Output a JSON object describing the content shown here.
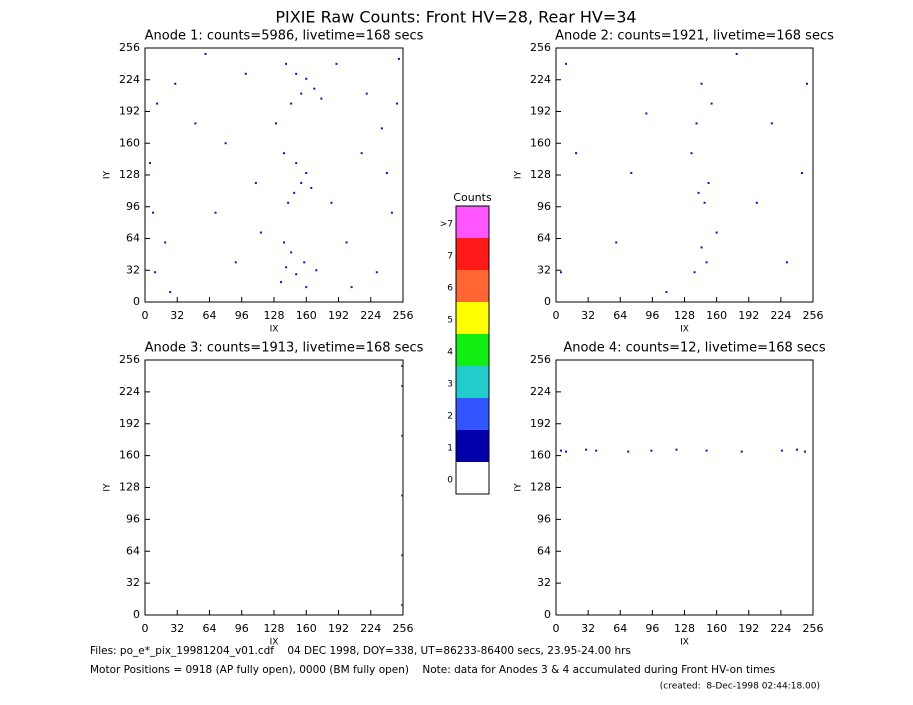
{
  "title": "PIXIE Raw Counts:  Front HV=28, Rear HV=34",
  "chart_data": [
    {
      "type": "scatter",
      "title": "Anode 1: counts=5986, livetime=168 secs",
      "xlabel": "IX",
      "ylabel": "IY",
      "xlim": [
        0,
        256
      ],
      "ylim": [
        0,
        256
      ],
      "xticks": [
        0,
        32,
        64,
        96,
        128,
        160,
        192,
        224,
        256
      ],
      "yticks": [
        0,
        32,
        64,
        96,
        128,
        160,
        192,
        224,
        256
      ],
      "series": [
        {
          "color": "#1010c0",
          "x": [
            135,
            140,
            150,
            158,
            145,
            160,
            170,
            138,
            148,
            155,
            142,
            160,
            150,
            165,
            138,
            130,
            145,
            155,
            168,
            160,
            150,
            175,
            140,
            10,
            20,
            5,
            12,
            30,
            50,
            70,
            90,
            100,
            110,
            200,
            215,
            230,
            245,
            250,
            190,
            185,
            220,
            240,
            8,
            25,
            60,
            80,
            115,
            205,
            235,
            252
          ],
          "y": [
            20,
            35,
            28,
            40,
            50,
            15,
            32,
            60,
            110,
            120,
            100,
            130,
            140,
            115,
            150,
            180,
            200,
            210,
            215,
            225,
            230,
            205,
            240,
            30,
            60,
            140,
            200,
            220,
            180,
            90,
            40,
            230,
            120,
            60,
            150,
            30,
            90,
            200,
            240,
            100,
            210,
            130,
            90,
            10,
            250,
            160,
            70,
            15,
            175,
            245
          ]
        }
      ]
    },
    {
      "type": "scatter",
      "title": "Anode 2: counts=1921, livetime=168 secs",
      "xlabel": "IX",
      "ylabel": "IY",
      "xlim": [
        0,
        256
      ],
      "ylim": [
        0,
        256
      ],
      "xticks": [
        0,
        32,
        64,
        96,
        128,
        160,
        192,
        224,
        256
      ],
      "yticks": [
        0,
        32,
        64,
        96,
        128,
        160,
        192,
        224,
        256
      ],
      "series": [
        {
          "color": "#1010c0",
          "x": [
            138,
            145,
            150,
            142,
            152,
            148,
            140,
            155,
            145,
            135,
            5,
            20,
            10,
            60,
            90,
            200,
            230,
            250,
            245,
            180,
            110,
            75,
            215,
            160
          ],
          "y": [
            30,
            55,
            40,
            110,
            120,
            100,
            180,
            200,
            220,
            150,
            30,
            150,
            240,
            60,
            190,
            100,
            40,
            220,
            130,
            250,
            10,
            130,
            180,
            70
          ]
        }
      ]
    },
    {
      "type": "scatter",
      "title": "Anode 3: counts=1913, livetime=168 secs",
      "xlabel": "IX",
      "ylabel": "IY",
      "xlim": [
        0,
        256
      ],
      "ylim": [
        0,
        256
      ],
      "xticks": [
        0,
        32,
        64,
        96,
        128,
        160,
        192,
        224,
        256
      ],
      "yticks": [
        0,
        32,
        64,
        96,
        128,
        160,
        192,
        224,
        256
      ],
      "series": [
        {
          "color": "#cc3366",
          "x": [
            255,
            255,
            255,
            255,
            255,
            255
          ],
          "y": [
            10,
            60,
            120,
            180,
            230,
            250
          ]
        }
      ]
    },
    {
      "type": "scatter",
      "title": "Anode 4: counts=12, livetime=168 secs",
      "xlabel": "IX",
      "ylabel": "IY",
      "xlim": [
        0,
        256
      ],
      "ylim": [
        0,
        256
      ],
      "xticks": [
        0,
        32,
        64,
        96,
        128,
        160,
        192,
        224,
        256
      ],
      "yticks": [
        0,
        32,
        64,
        96,
        128,
        160,
        192,
        224,
        256
      ],
      "series": [
        {
          "color": "#1010c0",
          "x": [
            5,
            10,
            30,
            40,
            72,
            95,
            120,
            150,
            185,
            225,
            240,
            248
          ],
          "y": [
            165,
            164,
            166,
            165,
            164,
            165,
            166,
            165,
            164,
            165,
            166,
            164
          ]
        }
      ]
    }
  ],
  "colorbar": {
    "title": "Counts",
    "levels": [
      {
        "label": ">7",
        "color": "#ff55ff"
      },
      {
        "label": "7",
        "color": "#ff1a1a"
      },
      {
        "label": "6",
        "color": "#ff6633"
      },
      {
        "label": "5",
        "color": "#ffff00"
      },
      {
        "label": "4",
        "color": "#11ee11"
      },
      {
        "label": "3",
        "color": "#22cccc"
      },
      {
        "label": "2",
        "color": "#3355ff"
      },
      {
        "label": "1",
        "color": "#0000aa"
      },
      {
        "label": "0",
        "color": "#ffffff"
      }
    ]
  },
  "footer": [
    "Files: po_e*_pix_19981204_v01.cdf    04 DEC 1998, DOY=338, UT=86233-86400 secs, 23.95-24.00 hrs",
    "Motor Positions = 0918 (AP fully open), 0000 (BM fully open)    Note: data for Anodes 3 & 4 accumulated during Front HV-on times",
    "(created:  8-Dec-1998 02:44:18.00)"
  ]
}
